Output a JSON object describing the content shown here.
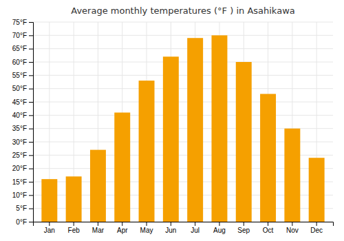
{
  "chart_data": {
    "type": "bar",
    "title": "Average monthly temperatures (°F ) in Asahikawa",
    "categories": [
      "Jan",
      "Feb",
      "Mar",
      "Apr",
      "May",
      "Jun",
      "Jul",
      "Aug",
      "Sep",
      "Oct",
      "Nov",
      "Dec"
    ],
    "values": [
      16,
      17,
      27,
      41,
      53,
      62,
      69,
      70,
      60,
      48,
      35,
      24
    ],
    "color": "#F5A000",
    "ylim": [
      0,
      75
    ],
    "yticks": [
      {
        "value": 0,
        "label": "0°F"
      },
      {
        "value": 5,
        "label": "5°F"
      },
      {
        "value": 10,
        "label": "10°F"
      },
      {
        "value": 15,
        "label": "15°F"
      },
      {
        "value": 20,
        "label": "20°F"
      },
      {
        "value": 25,
        "label": "25°F"
      },
      {
        "value": 30,
        "label": "30°F"
      },
      {
        "value": 35,
        "label": "35°F"
      },
      {
        "value": 40,
        "label": "40°F"
      },
      {
        "value": 45,
        "label": "45°F"
      },
      {
        "value": 50,
        "label": "50°F"
      },
      {
        "value": 55,
        "label": "55°F"
      },
      {
        "value": 60,
        "label": "60°F"
      },
      {
        "value": 65,
        "label": "65°F"
      },
      {
        "value": 70,
        "label": "70°F"
      },
      {
        "value": 75,
        "label": "75°F"
      }
    ],
    "grid": true
  }
}
